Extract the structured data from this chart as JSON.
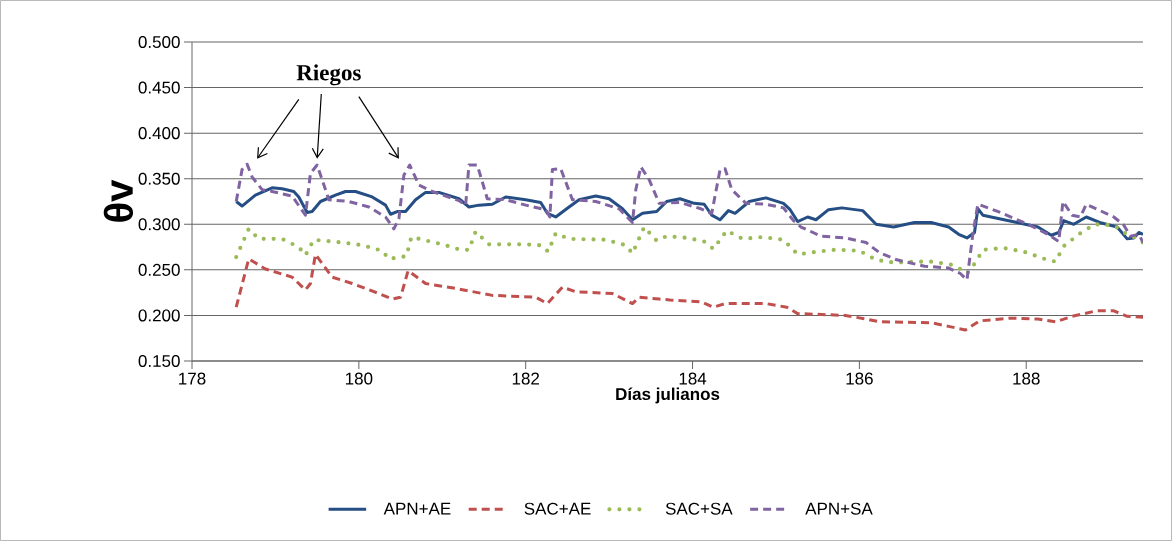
{
  "chart_data": {
    "type": "line",
    "xlabel": "Días julianos",
    "ylabel": "θv",
    "annotations": [
      "Riegos"
    ],
    "xlim": [
      178,
      189.4
    ],
    "xticks": [
      178,
      180,
      182,
      184,
      186,
      188
    ],
    "ylim": [
      0.15,
      0.5
    ],
    "yticks": [
      {
        "value": 0.15,
        "label": "0.150"
      },
      {
        "value": 0.2,
        "label": "0.200"
      },
      {
        "value": 0.25,
        "label": "0.250"
      },
      {
        "value": 0.3,
        "label": "0.300"
      },
      {
        "value": 0.35,
        "label": "0.350"
      },
      {
        "value": 0.4,
        "label": "0.400"
      },
      {
        "value": 0.45,
        "label": "0.450"
      },
      {
        "value": 0.5,
        "label": "0.500"
      }
    ],
    "grid": "y",
    "legend": "bottom",
    "series": [
      {
        "name": "APN+AE",
        "color": "#254e85",
        "line_style": "solid",
        "x": [
          178.53,
          178.6,
          178.76,
          178.96,
          179.08,
          179.22,
          179.28,
          179.38,
          179.44,
          179.54,
          179.72,
          179.84,
          179.96,
          180.16,
          180.32,
          180.38,
          180.46,
          180.56,
          180.68,
          180.8,
          180.96,
          181.2,
          181.32,
          181.44,
          181.6,
          181.76,
          182.0,
          182.18,
          182.26,
          182.36,
          182.52,
          182.64,
          182.84,
          183.0,
          183.16,
          183.28,
          183.4,
          183.57,
          183.69,
          183.85,
          184.02,
          184.14,
          184.23,
          184.33,
          184.43,
          184.51,
          184.68,
          184.88,
          185.09,
          185.17,
          185.26,
          185.38,
          185.48,
          185.63,
          185.79,
          186.04,
          186.2,
          186.41,
          186.66,
          186.86,
          187.07,
          187.19,
          187.29,
          187.38,
          187.42,
          187.48,
          187.89,
          188.14,
          188.3,
          188.39,
          188.45,
          188.57,
          188.72,
          188.88,
          189.09,
          189.21,
          189.29,
          189.35,
          189.4
        ],
        "values": [
          0.325,
          0.32,
          0.332,
          0.34,
          0.339,
          0.336,
          0.33,
          0.313,
          0.314,
          0.325,
          0.332,
          0.336,
          0.336,
          0.33,
          0.321,
          0.311,
          0.314,
          0.314,
          0.327,
          0.335,
          0.335,
          0.328,
          0.319,
          0.321,
          0.322,
          0.33,
          0.327,
          0.324,
          0.312,
          0.308,
          0.319,
          0.327,
          0.331,
          0.328,
          0.317,
          0.305,
          0.312,
          0.314,
          0.325,
          0.328,
          0.323,
          0.322,
          0.31,
          0.305,
          0.315,
          0.312,
          0.325,
          0.329,
          0.323,
          0.316,
          0.303,
          0.308,
          0.305,
          0.316,
          0.318,
          0.315,
          0.3,
          0.297,
          0.302,
          0.302,
          0.297,
          0.289,
          0.285,
          0.291,
          0.317,
          0.31,
          0.302,
          0.297,
          0.288,
          0.291,
          0.304,
          0.3,
          0.308,
          0.302,
          0.297,
          0.284,
          0.285,
          0.291,
          0.289
        ]
      },
      {
        "name": "SAC+AE",
        "color": "#c0504d",
        "line_style": "dashed",
        "x": [
          178.53,
          178.68,
          178.88,
          179.2,
          179.36,
          179.42,
          179.48,
          179.68,
          179.92,
          180.24,
          180.4,
          180.5,
          180.59,
          180.8,
          181.2,
          181.6,
          182.12,
          182.26,
          182.44,
          182.6,
          183.04,
          183.28,
          183.36,
          183.6,
          183.73,
          184.1,
          184.25,
          184.39,
          184.88,
          185.13,
          185.26,
          185.83,
          186.08,
          186.24,
          186.86,
          187.07,
          187.27,
          187.44,
          187.81,
          188.14,
          188.35,
          188.55,
          188.84,
          189.05,
          189.21,
          189.4
        ],
        "values": [
          0.209,
          0.262,
          0.251,
          0.242,
          0.228,
          0.235,
          0.267,
          0.242,
          0.235,
          0.224,
          0.218,
          0.22,
          0.249,
          0.235,
          0.229,
          0.222,
          0.22,
          0.213,
          0.231,
          0.226,
          0.224,
          0.213,
          0.22,
          0.218,
          0.217,
          0.215,
          0.209,
          0.213,
          0.213,
          0.209,
          0.202,
          0.2,
          0.196,
          0.193,
          0.192,
          0.188,
          0.184,
          0.194,
          0.197,
          0.196,
          0.193,
          0.199,
          0.205,
          0.205,
          0.199,
          0.198
        ]
      },
      {
        "name": "SAC+SA",
        "color": "#9bbb59",
        "line_style": "dotted",
        "x": [
          178.53,
          178.68,
          178.8,
          179.08,
          179.28,
          179.36,
          179.46,
          179.8,
          180.04,
          180.28,
          180.36,
          180.57,
          180.63,
          181.0,
          181.22,
          181.32,
          181.4,
          181.56,
          182.0,
          182.18,
          182.27,
          182.36,
          182.52,
          182.96,
          183.2,
          183.28,
          183.42,
          183.57,
          183.69,
          183.94,
          184.14,
          184.25,
          184.41,
          184.6,
          184.84,
          185.09,
          185.26,
          185.5,
          185.71,
          186.0,
          186.2,
          186.41,
          186.7,
          186.86,
          187.09,
          187.21,
          187.29,
          187.4,
          187.48,
          187.73,
          187.97,
          188.22,
          188.35,
          188.45,
          188.63,
          188.82,
          189.05,
          189.17,
          189.29,
          189.4
        ],
        "values": [
          0.264,
          0.295,
          0.284,
          0.284,
          0.275,
          0.266,
          0.283,
          0.28,
          0.277,
          0.271,
          0.262,
          0.265,
          0.286,
          0.278,
          0.272,
          0.272,
          0.292,
          0.278,
          0.278,
          0.277,
          0.27,
          0.29,
          0.284,
          0.283,
          0.277,
          0.268,
          0.297,
          0.282,
          0.287,
          0.285,
          0.281,
          0.273,
          0.293,
          0.284,
          0.286,
          0.283,
          0.267,
          0.27,
          0.272,
          0.271,
          0.261,
          0.258,
          0.259,
          0.259,
          0.256,
          0.251,
          0.246,
          0.259,
          0.272,
          0.274,
          0.27,
          0.262,
          0.259,
          0.276,
          0.289,
          0.3,
          0.299,
          0.291,
          0.286,
          0.28
        ]
      },
      {
        "name": "APN+SA",
        "color": "#8064a2",
        "line_style": "dashed",
        "x": [
          178.53,
          178.6,
          178.66,
          178.72,
          178.84,
          178.96,
          179.2,
          179.36,
          179.42,
          179.5,
          179.56,
          179.64,
          179.88,
          180.12,
          180.32,
          180.42,
          180.48,
          180.54,
          180.61,
          180.72,
          180.88,
          181.2,
          181.28,
          181.32,
          181.42,
          181.54,
          181.76,
          182.0,
          182.24,
          182.29,
          182.32,
          182.42,
          182.56,
          182.84,
          183.12,
          183.28,
          183.32,
          183.38,
          183.48,
          183.6,
          183.85,
          184.1,
          184.23,
          184.33,
          184.39,
          184.47,
          184.64,
          184.88,
          185.09,
          185.21,
          185.3,
          185.54,
          185.83,
          186.08,
          186.24,
          186.45,
          186.78,
          187.07,
          187.21,
          187.29,
          187.36,
          187.42,
          187.69,
          188.02,
          188.26,
          188.39,
          188.44,
          188.55,
          188.65,
          188.72,
          189.05,
          189.17,
          189.25,
          189.35,
          189.4
        ],
        "values": [
          0.325,
          0.36,
          0.366,
          0.352,
          0.338,
          0.336,
          0.331,
          0.31,
          0.356,
          0.365,
          0.349,
          0.327,
          0.325,
          0.319,
          0.308,
          0.295,
          0.306,
          0.354,
          0.365,
          0.343,
          0.336,
          0.326,
          0.321,
          0.365,
          0.365,
          0.328,
          0.327,
          0.321,
          0.316,
          0.308,
          0.36,
          0.361,
          0.327,
          0.325,
          0.317,
          0.302,
          0.338,
          0.363,
          0.349,
          0.323,
          0.324,
          0.317,
          0.312,
          0.36,
          0.361,
          0.338,
          0.323,
          0.322,
          0.318,
          0.304,
          0.297,
          0.287,
          0.285,
          0.28,
          0.269,
          0.261,
          0.254,
          0.252,
          0.246,
          0.239,
          0.289,
          0.322,
          0.313,
          0.3,
          0.289,
          0.281,
          0.325,
          0.31,
          0.308,
          0.322,
          0.308,
          0.299,
          0.287,
          0.289,
          0.28
        ]
      }
    ]
  }
}
